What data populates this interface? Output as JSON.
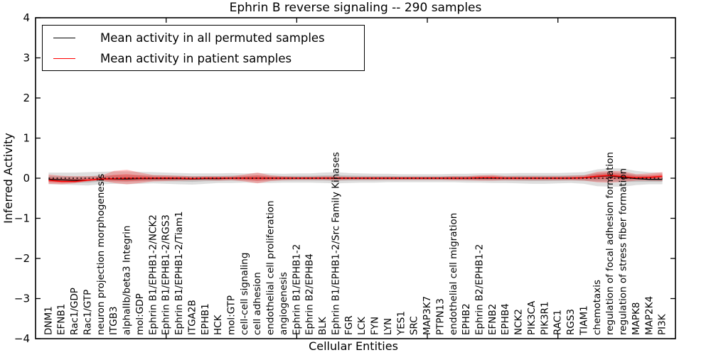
{
  "figure": {
    "title": "Ephrin B reverse signaling -- 290 samples",
    "xlabel": "Cellular Entities",
    "ylabel": "Inferred Activity"
  },
  "legend": {
    "entries": [
      {
        "label": "Mean activity in all permuted samples",
        "color": "#000000"
      },
      {
        "label": "Mean activity in patient samples",
        "color": "#ff0000"
      }
    ]
  },
  "chart_data": {
    "type": "line",
    "title": "Ephrin B reverse signaling -- 290 samples",
    "xlabel": "Cellular Entities",
    "ylabel": "Inferred Activity",
    "ylim": [
      -4,
      4
    ],
    "ytick_values": [
      4,
      3,
      2,
      1,
      0,
      -1,
      -2,
      -3,
      -4
    ],
    "ytick_labels": [
      "4",
      "3",
      "2",
      "1",
      "0",
      "−1",
      "−2",
      "−3",
      "−4"
    ],
    "xlim": [
      0,
      49
    ],
    "xtick_positions_unlabeled": [
      10,
      20,
      30,
      40
    ],
    "grid": false,
    "legend_position": "upper-left",
    "zero_reference_line": {
      "y": 0,
      "style": "dotted",
      "color": "#000000"
    },
    "categories": [
      "DNM1",
      "EFNB1",
      "Rac1/GDP",
      "Rac1/GTP",
      "neuron projection morphogenesis",
      "ITGB3",
      "alphaIIb/beta3 Integrin",
      "mol:GDP",
      "Ephrin B1/EPHB1-2/NCK2",
      "Ephrin B1/EPHB1-2/RGS3",
      "Ephrin B1/EPHB1-2/Tiam1",
      "ITGA2B",
      "EPHB1",
      "HCK",
      "mol:GTP",
      "cell-cell signaling",
      "cell adhesion",
      "endothelial cell proliferation",
      "angiogenesis",
      "Ephrin B1/EPHB1-2",
      "Ephrin B2/EPHB4",
      "BLK",
      "Ephrin B1/EPHB1-2/Src Family Kinases",
      "FGR",
      "LCK",
      "FYN",
      "LYN",
      "YES1",
      "SRC",
      "MAP3K7",
      "PTPN13",
      "endothelial cell migration",
      "EPHB2",
      "Ephrin B2/EPHB1-2",
      "EFNB2",
      "EPHB4",
      "NCK2",
      "PIK3CA",
      "PIK3R1",
      "RAC1",
      "RGS3",
      "TIAM1",
      "chemotaxis",
      "regulation of focal adhesion formation",
      "regulation of stress fiber formation",
      "MAPK8",
      "MAP2K4",
      "PI3K"
    ],
    "series": [
      {
        "name": "Mean activity in all permuted samples",
        "color": "#000000",
        "values": [
          -0.03,
          -0.04,
          -0.05,
          -0.05,
          -0.02,
          -0.02,
          -0.02,
          -0.01,
          -0.01,
          -0.01,
          -0.01,
          -0.02,
          -0.01,
          -0.01,
          0,
          0,
          0,
          0,
          0,
          0,
          0,
          0,
          0,
          0,
          0,
          0,
          0,
          0,
          0,
          0,
          0,
          0,
          0,
          0,
          0,
          0,
          0,
          0,
          0,
          0,
          0,
          0.01,
          0.04,
          0.06,
          0.02,
          -0.01,
          -0.03,
          -0.03
        ]
      },
      {
        "name": "Mean activity in patient samples",
        "color": "#ff0000",
        "values": [
          -0.05,
          -0.08,
          -0.08,
          -0.05,
          -0.02,
          -0.01,
          0,
          0,
          0,
          0,
          0,
          -0.01,
          0,
          0,
          0,
          0,
          0,
          0,
          0,
          0,
          0,
          0,
          0,
          0,
          0,
          0,
          0,
          0,
          0,
          0,
          0,
          0,
          0,
          0.01,
          0.01,
          0,
          0,
          0,
          0,
          0,
          0,
          0.01,
          0.05,
          0.07,
          0.04,
          0.01,
          0.02,
          0.05
        ]
      }
    ],
    "bands": [
      {
        "name": "permuted samples spread",
        "color": "rgba(0,0,0,0.13)",
        "upper": [
          0.14,
          0.14,
          0.14,
          0.15,
          0.16,
          0.17,
          0.17,
          0.16,
          0.15,
          0.14,
          0.13,
          0.12,
          0.12,
          0.12,
          0.13,
          0.12,
          0.13,
          0.12,
          0.11,
          0.12,
          0.12,
          0.14,
          0.15,
          0.13,
          0.12,
          0.11,
          0.11,
          0.1,
          0.1,
          0.1,
          0.1,
          0.11,
          0.11,
          0.12,
          0.12,
          0.12,
          0.13,
          0.13,
          0.13,
          0.13,
          0.14,
          0.15,
          0.22,
          0.25,
          0.24,
          0.18,
          0.15,
          0.14
        ],
        "lower": [
          -0.15,
          -0.16,
          -0.17,
          -0.18,
          -0.15,
          -0.14,
          -0.15,
          -0.14,
          -0.13,
          -0.14,
          -0.15,
          -0.16,
          -0.14,
          -0.12,
          -0.12,
          -0.11,
          -0.12,
          -0.12,
          -0.11,
          -0.11,
          -0.11,
          -0.12,
          -0.13,
          -0.12,
          -0.11,
          -0.11,
          -0.1,
          -0.1,
          -0.1,
          -0.1,
          -0.1,
          -0.1,
          -0.11,
          -0.11,
          -0.12,
          -0.12,
          -0.13,
          -0.14,
          -0.14,
          -0.13,
          -0.12,
          -0.14,
          -0.2,
          -0.21,
          -0.21,
          -0.17,
          -0.15,
          -0.15
        ]
      },
      {
        "name": "patient samples spread",
        "color": "rgba(255,0,0,0.25)",
        "upper": [
          0.09,
          0.06,
          0.05,
          0.05,
          0.06,
          0.18,
          0.21,
          0.14,
          0.08,
          0.07,
          0.06,
          0.05,
          0.05,
          0.05,
          0.05,
          0.09,
          0.14,
          0.07,
          0.05,
          0.04,
          0.04,
          0.05,
          0.05,
          0.04,
          0.04,
          0.04,
          0.04,
          0.04,
          0.04,
          0.04,
          0.04,
          0.05,
          0.05,
          0.07,
          0.08,
          0.05,
          0.05,
          0.05,
          0.05,
          0.05,
          0.06,
          0.07,
          0.16,
          0.18,
          0.17,
          0.1,
          0.12,
          0.15
        ],
        "lower": [
          -0.14,
          -0.15,
          -0.13,
          -0.08,
          -0.06,
          -0.12,
          -0.15,
          -0.12,
          -0.08,
          -0.07,
          -0.06,
          -0.05,
          -0.05,
          -0.06,
          -0.05,
          -0.08,
          -0.13,
          -0.07,
          -0.05,
          -0.04,
          -0.04,
          -0.04,
          -0.05,
          -0.04,
          -0.04,
          -0.04,
          -0.04,
          -0.04,
          -0.04,
          -0.04,
          -0.04,
          -0.05,
          -0.05,
          -0.06,
          -0.06,
          -0.05,
          -0.05,
          -0.05,
          -0.05,
          -0.05,
          -0.05,
          -0.06,
          -0.1,
          -0.11,
          -0.09,
          -0.06,
          -0.06,
          -0.07
        ]
      }
    ]
  }
}
